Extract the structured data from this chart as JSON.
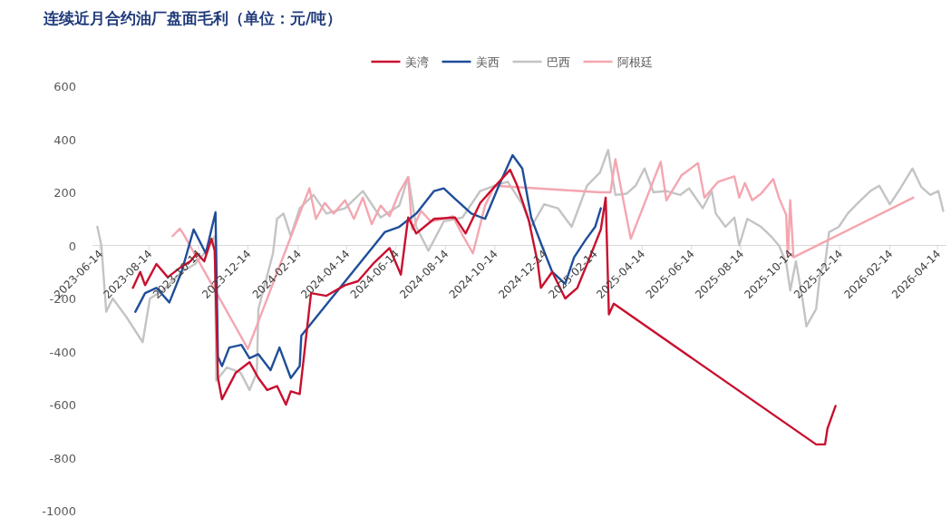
{
  "chart_data": {
    "type": "line",
    "title": "连续近月合约油厂盘面毛利（单位：元/吨）",
    "xlim": [
      "2023-06-05",
      "2026-04-25"
    ],
    "xticks": [
      "2023-06-14",
      "2023-08-14",
      "2023-10-14",
      "2023-12-14",
      "2024-02-14",
      "2024-04-14",
      "2024-06-14",
      "2024-08-14",
      "2024-10-14",
      "2024-12-14",
      "2025-02-14",
      "2025-04-14",
      "2025-06-14",
      "2025-08-14",
      "2025-10-14",
      "2025-12-14",
      "2026-02-14",
      "2026-04-14"
    ],
    "ylim": [
      -1000,
      600
    ],
    "yticks": [
      -1000,
      -800,
      -600,
      -400,
      -200,
      0,
      200,
      400,
      600
    ],
    "grid": false,
    "legend": "top",
    "marker": "none",
    "line_style": "solid",
    "series": [
      {
        "name": "美湾",
        "color": "#c8102e",
        "x": [
          "2023-07-25",
          "2023-08-03",
          "2023-08-09",
          "2023-08-23",
          "2023-09-06",
          "2023-09-23",
          "2023-10-04",
          "2023-10-12",
          "2023-10-21",
          "2023-10-30",
          "2023-11-03",
          "2023-11-07",
          "2023-11-12",
          "2023-11-29",
          "2023-12-16",
          "2023-12-27",
          "2024-01-07",
          "2024-01-19",
          "2024-01-30",
          "2024-02-05",
          "2024-02-16",
          "2024-02-21",
          "2024-03-01",
          "2024-03-20",
          "2024-04-12",
          "2024-04-28",
          "2024-05-18",
          "2024-06-06",
          "2024-06-20",
          "2024-06-29",
          "2024-07-09",
          "2024-07-31",
          "2024-08-26",
          "2024-09-08",
          "2024-09-26",
          "2024-10-12",
          "2024-11-02",
          "2024-11-10",
          "2024-11-25",
          "2024-12-06",
          "2024-12-10",
          "2024-12-24",
          "2025-01-09",
          "2025-01-24",
          "2025-02-07",
          "2025-02-22",
          "2025-02-28",
          "2025-03-04",
          "2025-03-10",
          "2025-11-15",
          "2025-11-26",
          "2025-11-29",
          "2025-12-09"
        ],
        "values": [
          -160,
          -100,
          -150,
          -70,
          -120,
          -80,
          -60,
          -30,
          -60,
          25,
          -20,
          -500,
          -580,
          -480,
          -440,
          -500,
          -545,
          -530,
          -600,
          -550,
          -560,
          -425,
          -180,
          -190,
          -150,
          -135,
          -65,
          -10,
          -110,
          105,
          45,
          100,
          105,
          45,
          160,
          215,
          285,
          230,
          95,
          -65,
          -160,
          -100,
          -200,
          -160,
          -55,
          60,
          180,
          -260,
          -220,
          -750,
          -750,
          -690,
          -605
        ]
      },
      {
        "name": "美西",
        "color": "#1f4e99",
        "x": [
          "2023-07-28",
          "2023-08-09",
          "2023-08-23",
          "2023-09-08",
          "2023-09-23",
          "2023-10-08",
          "2023-10-23",
          "2023-11-04",
          "2023-11-07",
          "2023-11-12",
          "2023-11-21",
          "2023-12-06",
          "2023-12-16",
          "2023-12-27",
          "2024-01-11",
          "2024-01-22",
          "2024-02-05",
          "2024-02-16",
          "2024-02-18",
          "2024-05-18",
          "2024-05-31",
          "2024-06-18",
          "2024-07-09",
          "2024-07-31",
          "2024-08-12",
          "2024-08-28",
          "2024-09-15",
          "2024-10-02",
          "2024-10-19",
          "2024-11-05",
          "2024-11-17",
          "2024-11-28",
          "2024-12-11",
          "2024-12-24",
          "2025-01-09",
          "2025-01-20",
          "2025-02-03",
          "2025-02-15",
          "2025-02-22"
        ],
        "values": [
          -250,
          -180,
          -160,
          -215,
          -100,
          60,
          -30,
          125,
          -420,
          -455,
          -385,
          -375,
          -425,
          -410,
          -470,
          -385,
          -500,
          -455,
          -340,
          0,
          50,
          70,
          120,
          205,
          215,
          170,
          120,
          100,
          225,
          340,
          290,
          105,
          0,
          -100,
          -145,
          -45,
          20,
          70,
          140
        ]
      },
      {
        "name": "巴西",
        "color": "#c4c4c4",
        "x": [
          "2023-06-11",
          "2023-06-16",
          "2023-06-22",
          "2023-06-30",
          "2023-07-17",
          "2023-08-06",
          "2023-08-15",
          "2023-08-31",
          "2023-09-23",
          "2023-10-10",
          "2023-10-21",
          "2023-11-03",
          "2023-11-05",
          "2023-11-18",
          "2023-12-05",
          "2023-12-16",
          "2023-12-25",
          "2023-12-27",
          "2024-01-14",
          "2024-01-19",
          "2024-01-27",
          "2024-02-05",
          "2024-02-16",
          "2024-03-04",
          "2024-03-20",
          "2024-04-12",
          "2024-05-04",
          "2024-05-26",
          "2024-06-18",
          "2024-06-29",
          "2024-07-09",
          "2024-07-24",
          "2024-08-12",
          "2024-09-04",
          "2024-09-26",
          "2024-10-14",
          "2024-10-30",
          "2024-11-17",
          "2024-11-28",
          "2024-12-14",
          "2024-12-31",
          "2025-01-17",
          "2025-02-05",
          "2025-02-21",
          "2025-03-03",
          "2025-03-12",
          "2025-03-26",
          "2025-04-06",
          "2025-04-17",
          "2025-04-28",
          "2025-05-14",
          "2025-05-31",
          "2025-06-11",
          "2025-06-28",
          "2025-07-09",
          "2025-07-14",
          "2025-07-26",
          "2025-08-06",
          "2025-08-12",
          "2025-08-22",
          "2025-09-08",
          "2025-09-20",
          "2025-09-30",
          "2025-10-09",
          "2025-10-14",
          "2025-10-21",
          "2025-10-29",
          "2025-11-03",
          "2025-11-15",
          "2025-11-20",
          "2025-11-26",
          "2025-12-01",
          "2025-12-13",
          "2025-12-24",
          "2026-01-04",
          "2026-01-21",
          "2026-02-01",
          "2026-02-14",
          "2026-02-25",
          "2026-03-14",
          "2026-03-25",
          "2026-04-05",
          "2026-04-15",
          "2026-04-21"
        ],
        "values": [
          70,
          0,
          -250,
          -200,
          -270,
          -365,
          -200,
          -170,
          -100,
          -70,
          -30,
          35,
          -510,
          -460,
          -480,
          -545,
          -480,
          -240,
          -30,
          100,
          120,
          35,
          140,
          190,
          120,
          140,
          205,
          105,
          150,
          258,
          70,
          -20,
          90,
          105,
          205,
          225,
          240,
          155,
          70,
          155,
          140,
          70,
          225,
          275,
          360,
          190,
          195,
          225,
          290,
          200,
          205,
          190,
          215,
          140,
          205,
          120,
          70,
          105,
          0,
          100,
          70,
          35,
          0,
          -65,
          -170,
          -60,
          -200,
          -305,
          -240,
          -100,
          -70,
          50,
          70,
          120,
          155,
          205,
          225,
          155,
          205,
          290,
          220,
          190,
          205,
          130
        ]
      },
      {
        "name": "阿根廷",
        "color": "#f4a6b0",
        "x": [
          "2023-09-12",
          "2023-09-21",
          "2023-09-26",
          "2023-12-14",
          "2024-02-28",
          "2024-03-07",
          "2024-03-18",
          "2024-03-29",
          "2024-04-12",
          "2024-04-23",
          "2024-05-04",
          "2024-05-15",
          "2024-05-26",
          "2024-06-06",
          "2024-06-18",
          "2024-06-29",
          "2024-07-04",
          "2024-07-15",
          "2024-07-27",
          "2024-08-12",
          "2024-08-23",
          "2024-09-04",
          "2024-09-17",
          "2024-10-02",
          "2024-10-14",
          "2025-02-21",
          "2025-03-06",
          "2025-03-12",
          "2025-03-31",
          "2025-05-07",
          "2025-05-14",
          "2025-06-02",
          "2025-06-22",
          "2025-06-30",
          "2025-07-17",
          "2025-08-06",
          "2025-08-12",
          "2025-08-19",
          "2025-08-28",
          "2025-09-08",
          "2025-09-23",
          "2025-09-30",
          "2025-10-09",
          "2025-10-11",
          "2025-10-14",
          "2025-10-18",
          "2026-03-15"
        ],
        "values": [
          35,
          63,
          40,
          -390,
          215,
          100,
          160,
          120,
          170,
          100,
          180,
          80,
          150,
          110,
          200,
          258,
          60,
          130,
          90,
          100,
          110,
          40,
          -30,
          150,
          225,
          200,
          200,
          325,
          25,
          315,
          170,
          265,
          310,
          180,
          240,
          260,
          180,
          235,
          170,
          195,
          250,
          180,
          115,
          -45,
          170,
          -45,
          180
        ]
      }
    ]
  }
}
